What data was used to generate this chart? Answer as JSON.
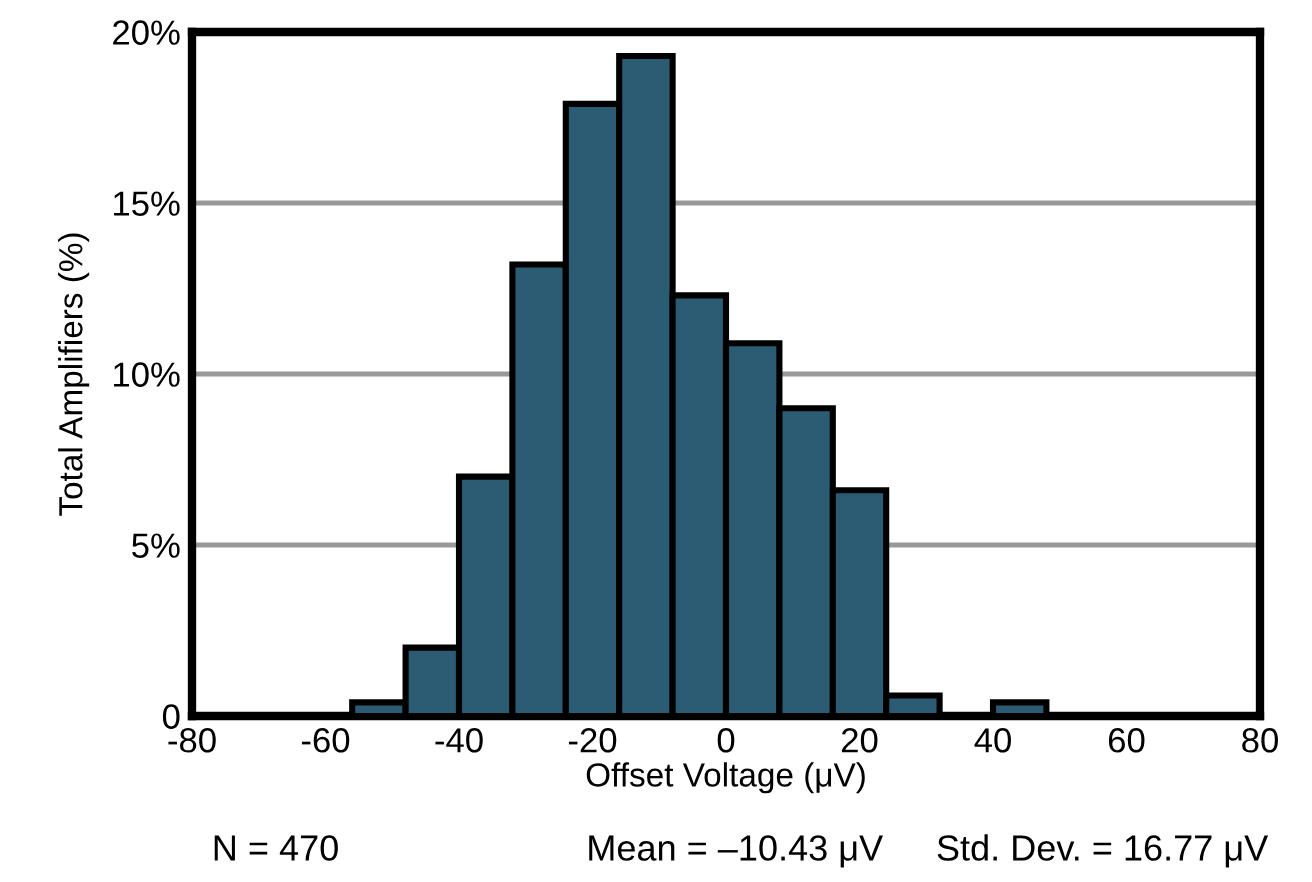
{
  "chart_data": {
    "type": "histogram",
    "xlabel": "Offset Voltage (μV)",
    "ylabel": "Total Amplifiers (%)",
    "bins": [
      -56,
      -48,
      -40,
      -32,
      -24,
      -16,
      -8,
      0,
      8,
      16,
      24,
      32,
      40,
      48
    ],
    "values": [
      0.4,
      2.0,
      7.0,
      13.2,
      17.9,
      19.3,
      12.3,
      10.9,
      9.0,
      6.6,
      0.6,
      0,
      0.4
    ],
    "color": "#2b5c74",
    "xlim": [
      -80,
      80
    ],
    "xticks": [
      -80,
      -60,
      -40,
      -20,
      0,
      20,
      40,
      60,
      80
    ],
    "ylim": [
      0,
      20
    ],
    "yticks": [
      0,
      {
        "value": 5,
        "label": "5%"
      },
      {
        "value": 10,
        "label": "10%"
      },
      {
        "value": 15,
        "label": "15%"
      },
      {
        "value": 20,
        "label": "20%"
      }
    ],
    "grid": "y",
    "annotations": [
      "N = 470",
      "Mean = –10.43 μV",
      "Std. Dev. = 16.77 μV"
    ]
  }
}
